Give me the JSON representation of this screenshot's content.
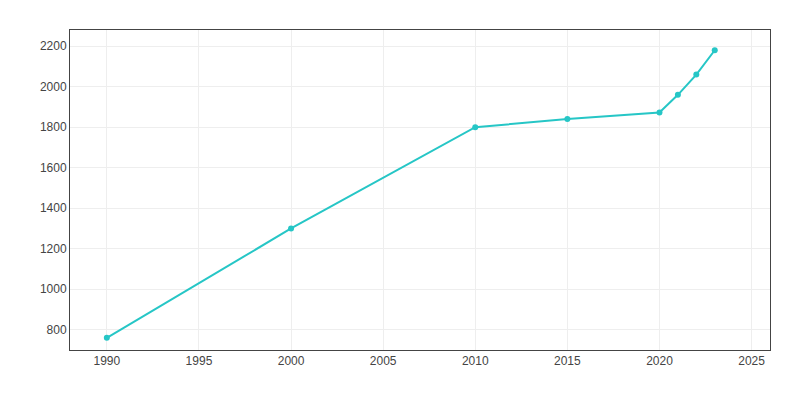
{
  "chart_data": {
    "type": "line",
    "x": [
      1990,
      2000,
      2010,
      2015,
      2020,
      2021,
      2022,
      2023
    ],
    "values": [
      760,
      1300,
      1800,
      1840,
      1873,
      1960,
      2060,
      2180
    ],
    "color": "#26C6C6",
    "marker": "circle",
    "line_style": "solid",
    "xlim": [
      1988,
      2026
    ],
    "ylim": [
      700,
      2280
    ],
    "xticks": [
      1990,
      1995,
      2000,
      2005,
      2010,
      2015,
      2020,
      2025
    ],
    "yticks": [
      800,
      1000,
      1200,
      1400,
      1600,
      1800,
      2000,
      2200
    ],
    "grid": true
  }
}
